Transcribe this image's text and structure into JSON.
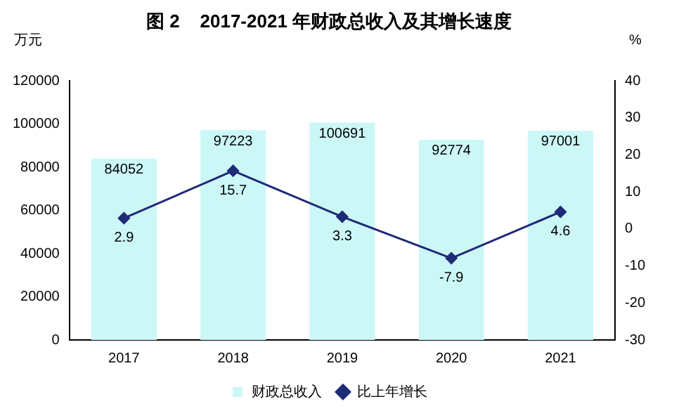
{
  "chart_data": {
    "type": "bar",
    "title": "图 2    2017-2021 年财政总收入及其增长速度",
    "ylabel": "万元",
    "y2label": "%",
    "categories": [
      "2017",
      "2018",
      "2019",
      "2020",
      "2021"
    ],
    "series": [
      {
        "name": "财政总收入",
        "color": "#ccf7f7",
        "values": [
          84052,
          97223,
          100691,
          92774,
          97001
        ]
      },
      {
        "name": "比上年增长",
        "type": "line",
        "axis": "y2",
        "color": "#1f2a78",
        "marker": "diamond",
        "values": [
          2.9,
          15.7,
          3.3,
          -7.9,
          4.6
        ]
      }
    ],
    "ylim": [
      0,
      120000
    ],
    "yticks": [
      0,
      20000,
      40000,
      60000,
      80000,
      100000,
      120000
    ],
    "y2lim": [
      -30,
      40
    ],
    "y2ticks": [
      -30,
      -20,
      -10,
      0,
      10,
      20,
      30,
      40
    ],
    "data_labels": true,
    "grid": false,
    "legend": "bottom"
  }
}
